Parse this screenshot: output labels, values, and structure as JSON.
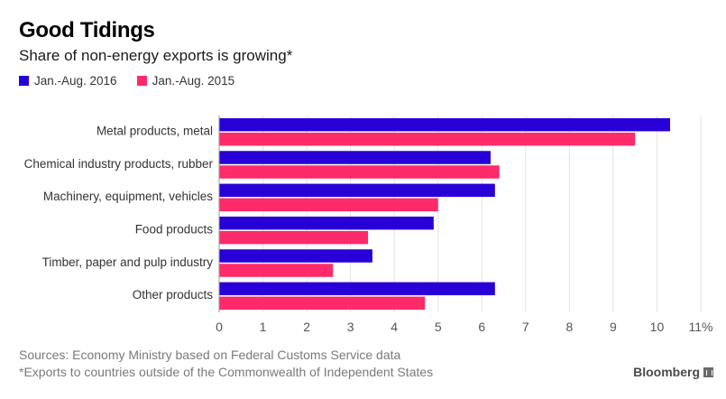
{
  "header": {
    "title": "Good Tidings",
    "subtitle": "Share of non-energy exports is growing*"
  },
  "legend": {
    "items": [
      {
        "label": "Jan.-Aug. 2016",
        "color": "#2800d7"
      },
      {
        "label": "Jan.-Aug. 2015",
        "color": "#ff2a6a"
      }
    ]
  },
  "chart_data": {
    "type": "bar",
    "orientation": "horizontal",
    "categories": [
      "Metal products, metal",
      "Chemical industry products, rubber",
      "Machinery, equipment, vehicles",
      "Food products",
      "Timber, paper and pulp industry",
      "Other products"
    ],
    "series": [
      {
        "name": "Jan.-Aug. 2016",
        "color": "#2800d7",
        "values": [
          10.3,
          6.2,
          6.3,
          4.9,
          3.5,
          6.3
        ]
      },
      {
        "name": "Jan.-Aug. 2015",
        "color": "#ff2a6a",
        "values": [
          9.5,
          6.4,
          5.0,
          3.4,
          2.6,
          4.7
        ]
      }
    ],
    "xlim": [
      0,
      11
    ],
    "ticks": [
      "0",
      "1",
      "2",
      "3",
      "4",
      "5",
      "6",
      "7",
      "8",
      "9",
      "10",
      "11%"
    ],
    "grid": true,
    "legend_position": "top-left"
  },
  "footer": {
    "source": "Sources: Economy Ministry based on Federal Customs Service data",
    "note": "*Exports to countries outside of the Commonwealth of Independent States",
    "brand": "Bloomberg"
  }
}
